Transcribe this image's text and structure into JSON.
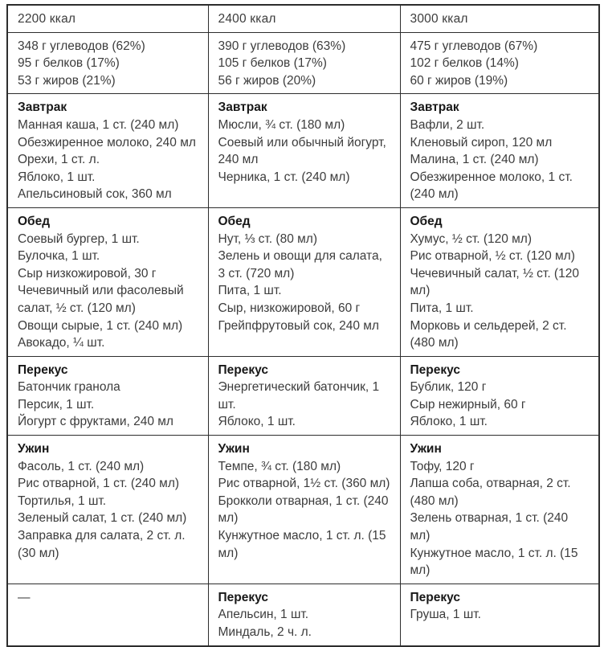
{
  "labels": {
    "breakfast": "Завтрак",
    "lunch": "Обед",
    "snack": "Перекус",
    "dinner": "Ужин"
  },
  "table": {
    "headers": [
      "2200 ккал",
      "2400 ккал",
      "3000 ккал"
    ],
    "empty_cell": "—",
    "columns": [
      {
        "macros": [
          "348 г углеводов (62%)",
          "95 г белков (17%)",
          "53 г жиров (21%)"
        ],
        "breakfast": [
          "Манная каша, 1 ст. (240 мл)",
          "Обезжиренное молоко, 240 мл",
          "Орехи, 1 ст. л.",
          "Яблоко, 1 шт.",
          "Апельсиновый сок, 360 мл"
        ],
        "lunch": [
          "Соевый бургер, 1 шт.",
          "Булочка, 1 шт.",
          "Сыр низкожировой, 30 г",
          "Чечевичный или фасолевый салат, ½ ст. (120 мл)",
          "Овощи сырые, 1 ст. (240 мл)",
          "Авокадо, ¼ шт."
        ],
        "snack": [
          "Батончик гранола",
          "Персик, 1 шт.",
          "Йогурт с фруктами, 240 мл"
        ],
        "dinner": [
          "Фасоль, 1 ст. (240 мл)",
          "Рис отварной, 1 ст. (240 мл)",
          "Тортилья, 1 шт.",
          "Зеленый салат, 1 ст. (240 мл)",
          "Заправка для салата, 2 ст. л. (30 мл)"
        ],
        "snack2": []
      },
      {
        "macros": [
          "390 г углеводов (63%)",
          "105 г белков (17%)",
          "56 г жиров (20%)"
        ],
        "breakfast": [
          "Мюсли, ¾ ст. (180 мл)",
          "Соевый или обычный йогурт, 240 мл",
          "Черника, 1 ст. (240 мл)"
        ],
        "lunch": [
          "Нут, ⅓ ст. (80 мл)",
          "Зелень и овощи для салата, 3 ст. (720 мл)",
          "Пита, 1 шт.",
          "Сыр, низкожировой, 60 г",
          "Грейпфрутовый сок, 240 мл"
        ],
        "snack": [
          "Энергетический батончик, 1 шт.",
          "Яблоко, 1 шт."
        ],
        "dinner": [
          "Темпе, ¾ ст. (180 мл)",
          "Рис отварной, 1½ ст. (360 мл)",
          "Брокколи отварная, 1 ст. (240 мл)",
          "Кунжутное масло, 1 ст. л. (15 мл)"
        ],
        "snack2": [
          "Апельсин, 1 шт.",
          "Миндаль, 2 ч. л."
        ]
      },
      {
        "macros": [
          "475 г углеводов (67%)",
          "102 г белков (14%)",
          "60 г жиров (19%)"
        ],
        "breakfast": [
          "Вафли, 2 шт.",
          "Кленовый сироп, 120 мл",
          "Малина, 1 ст. (240 мл)",
          "Обезжиренное молоко, 1 ст. (240 мл)"
        ],
        "lunch": [
          "Хумус, ½ ст. (120 мл)",
          "Рис отварной, ½ ст. (120 мл)",
          "Чечевичный салат, ½ ст. (120 мл)",
          "Пита, 1 шт.",
          "Морковь и сельдерей, 2 ст. (480 мл)"
        ],
        "snack": [
          "Бублик, 120 г",
          "Сыр нежирный, 60 г",
          "Яблоко, 1 шт."
        ],
        "dinner": [
          "Тофу, 120 г",
          "Лапша соба, отварная, 2 ст. (480 мл)",
          "Зелень отварная, 1 ст. (240 мл)",
          "Кунжутное масло, 1 ст. л. (15 мл)"
        ],
        "snack2": [
          "Груша, 1 шт."
        ]
      }
    ]
  }
}
